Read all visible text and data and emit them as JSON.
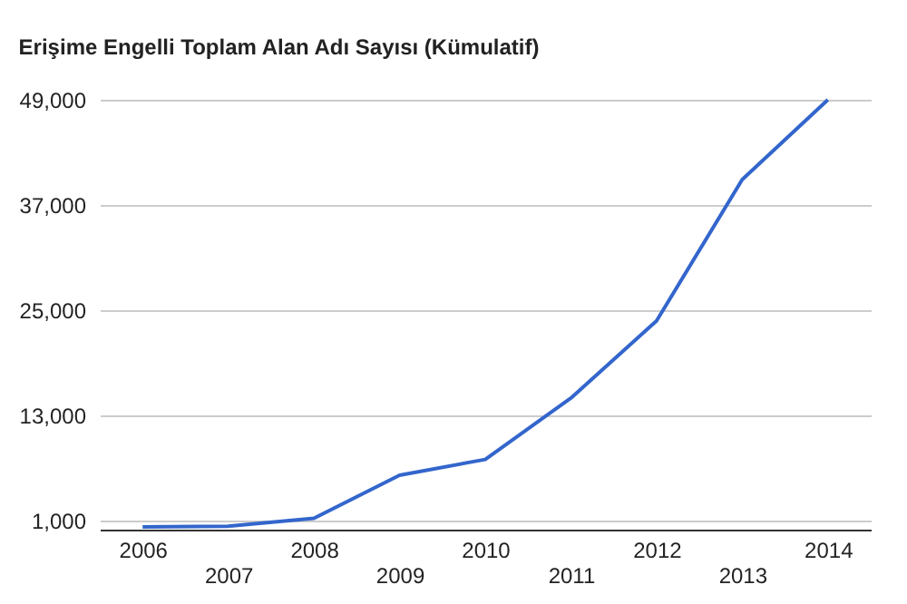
{
  "chart_data": {
    "type": "line",
    "title": "Erişime Engelli Toplam Alan Adı Sayısı (Kümulatif)",
    "categories": [
      "2006",
      "2007",
      "2008",
      "2009",
      "2010",
      "2011",
      "2012",
      "2013",
      "2014"
    ],
    "series": [
      {
        "color": "#3366cc",
        "values": [
          300,
          400,
          1300,
          6200,
          8000,
          15000,
          23800,
          39900,
          49000
        ]
      }
    ],
    "ylim": [
      0,
      49000
    ],
    "yticks": [
      {
        "value": 1000,
        "label": "1,000"
      },
      {
        "value": 13000,
        "label": "13,000"
      },
      {
        "value": 25000,
        "label": "25,000"
      },
      {
        "value": 37000,
        "label": "37,000"
      },
      {
        "value": 49000,
        "label": "49,000"
      }
    ],
    "grid": "y",
    "legend": false,
    "marker": "none",
    "line_style": "solid"
  }
}
